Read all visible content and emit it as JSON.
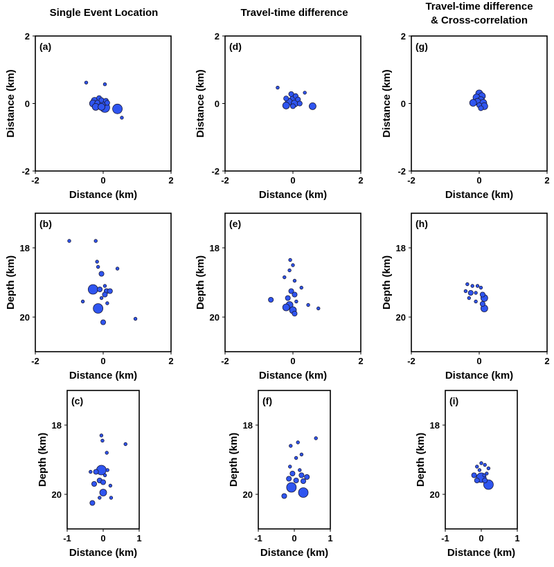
{
  "figure": {
    "column_titles": [
      [
        "Single Event Location"
      ],
      [
        "Travel-time difference"
      ],
      [
        "Travel-time difference",
        "& Cross-correlation"
      ]
    ],
    "event_color": "#2f55f0",
    "event_edge_color": "#1a1a3a"
  },
  "chart_data": [
    {
      "id": "a",
      "label": "(a)",
      "type": "scatter",
      "view": "map",
      "xlabel": "Distance (km)",
      "ylabel": "Distance (km)",
      "xlim": [
        -2,
        2
      ],
      "ylim": [
        -2,
        2
      ],
      "xticks": [
        -2,
        0,
        2
      ],
      "yticks": [
        2,
        0,
        -2
      ],
      "points": [
        {
          "x": -0.5,
          "y": 0.62,
          "m": 1
        },
        {
          "x": 0.05,
          "y": 0.57,
          "m": 1
        },
        {
          "x": -0.12,
          "y": 0.16,
          "m": 2
        },
        {
          "x": -0.25,
          "y": 0.08,
          "m": 3
        },
        {
          "x": -0.05,
          "y": 0.1,
          "m": 2
        },
        {
          "x": 0.08,
          "y": 0.08,
          "m": 2
        },
        {
          "x": -0.3,
          "y": 0.0,
          "m": 3
        },
        {
          "x": -0.15,
          "y": 0.0,
          "m": 3
        },
        {
          "x": 0.0,
          "y": 0.02,
          "m": 3
        },
        {
          "x": 0.12,
          "y": 0.02,
          "m": 2
        },
        {
          "x": -0.22,
          "y": -0.1,
          "m": 3
        },
        {
          "x": -0.05,
          "y": -0.1,
          "m": 3
        },
        {
          "x": 0.05,
          "y": -0.12,
          "m": 4
        },
        {
          "x": 0.42,
          "y": -0.16,
          "m": 4
        },
        {
          "x": 0.55,
          "y": -0.42,
          "m": 1
        }
      ]
    },
    {
      "id": "d",
      "label": "(d)",
      "type": "scatter",
      "view": "map",
      "xlabel": "Distance (km)",
      "ylabel": "Distance (km)",
      "xlim": [
        -2,
        2
      ],
      "ylim": [
        -2,
        2
      ],
      "xticks": [
        -2,
        0,
        2
      ],
      "yticks": [
        2,
        0,
        -2
      ],
      "points": [
        {
          "x": -0.45,
          "y": 0.47,
          "m": 1
        },
        {
          "x": 0.35,
          "y": 0.32,
          "m": 1
        },
        {
          "x": -0.05,
          "y": 0.28,
          "m": 2
        },
        {
          "x": 0.08,
          "y": 0.22,
          "m": 2
        },
        {
          "x": -0.2,
          "y": 0.15,
          "m": 2
        },
        {
          "x": 0.0,
          "y": 0.12,
          "m": 3
        },
        {
          "x": 0.15,
          "y": 0.12,
          "m": 2
        },
        {
          "x": -0.12,
          "y": 0.05,
          "m": 3
        },
        {
          "x": 0.05,
          "y": 0.0,
          "m": 3
        },
        {
          "x": 0.2,
          "y": 0.0,
          "m": 2
        },
        {
          "x": -0.2,
          "y": -0.06,
          "m": 3
        },
        {
          "x": 0.0,
          "y": -0.08,
          "m": 2
        },
        {
          "x": 0.58,
          "y": -0.08,
          "m": 3
        }
      ]
    },
    {
      "id": "g",
      "label": "(g)",
      "type": "scatter",
      "view": "map",
      "xlabel": "Distance (km)",
      "ylabel": "Distance (km)",
      "xlim": [
        -2,
        2
      ],
      "ylim": [
        -2,
        2
      ],
      "xticks": [
        -2,
        0,
        2
      ],
      "yticks": [
        2,
        0,
        -2
      ],
      "points": [
        {
          "x": 0.0,
          "y": 0.3,
          "m": 3
        },
        {
          "x": 0.08,
          "y": 0.22,
          "m": 3
        },
        {
          "x": -0.08,
          "y": 0.18,
          "m": 3
        },
        {
          "x": 0.05,
          "y": 0.1,
          "m": 3
        },
        {
          "x": -0.05,
          "y": 0.05,
          "m": 3
        },
        {
          "x": -0.18,
          "y": 0.02,
          "m": 3
        },
        {
          "x": 0.12,
          "y": 0.02,
          "m": 3
        },
        {
          "x": 0.0,
          "y": -0.05,
          "m": 2
        },
        {
          "x": 0.15,
          "y": -0.08,
          "m": 3
        },
        {
          "x": 0.05,
          "y": -0.14,
          "m": 2
        }
      ]
    },
    {
      "id": "b",
      "label": "(b)",
      "type": "scatter",
      "view": "depth",
      "xlabel": "Distance (km)",
      "ylabel": "Depth (km)",
      "xlim": [
        -2,
        2
      ],
      "ylim": [
        21,
        17
      ],
      "xticks": [
        -2,
        0,
        2
      ],
      "yticks": [
        18,
        20
      ],
      "points": [
        {
          "x": -1.0,
          "y": 17.8,
          "m": 1
        },
        {
          "x": -0.22,
          "y": 17.8,
          "m": 1
        },
        {
          "x": -0.18,
          "y": 18.4,
          "m": 1
        },
        {
          "x": -0.15,
          "y": 18.55,
          "m": 1
        },
        {
          "x": 0.42,
          "y": 18.6,
          "m": 1
        },
        {
          "x": -0.05,
          "y": 18.75,
          "m": 2
        },
        {
          "x": 0.05,
          "y": 19.1,
          "m": 1
        },
        {
          "x": -0.1,
          "y": 19.2,
          "m": 2
        },
        {
          "x": -0.3,
          "y": 19.2,
          "m": 4
        },
        {
          "x": 0.1,
          "y": 19.25,
          "m": 2
        },
        {
          "x": 0.2,
          "y": 19.25,
          "m": 2
        },
        {
          "x": 0.05,
          "y": 19.35,
          "m": 2
        },
        {
          "x": -0.05,
          "y": 19.45,
          "m": 1
        },
        {
          "x": -0.6,
          "y": 19.55,
          "m": 1
        },
        {
          "x": 0.12,
          "y": 19.6,
          "m": 1
        },
        {
          "x": -0.15,
          "y": 19.75,
          "m": 4
        },
        {
          "x": 0.0,
          "y": 20.15,
          "m": 2
        },
        {
          "x": 0.95,
          "y": 20.05,
          "m": 1
        }
      ]
    },
    {
      "id": "e",
      "label": "(e)",
      "type": "scatter",
      "view": "depth",
      "xlabel": "Distance (km)",
      "ylabel": "Depth (km)",
      "xlim": [
        -2,
        2
      ],
      "ylim": [
        21,
        17
      ],
      "xticks": [
        -2,
        0,
        2
      ],
      "yticks": [
        18,
        20
      ],
      "points": [
        {
          "x": -0.08,
          "y": 18.35,
          "m": 1
        },
        {
          "x": 0.0,
          "y": 18.5,
          "m": 1
        },
        {
          "x": -0.1,
          "y": 18.65,
          "m": 1
        },
        {
          "x": -0.25,
          "y": 18.85,
          "m": 1
        },
        {
          "x": 0.05,
          "y": 18.95,
          "m": 1
        },
        {
          "x": 0.25,
          "y": 19.15,
          "m": 1
        },
        {
          "x": -0.05,
          "y": 19.25,
          "m": 2
        },
        {
          "x": 0.05,
          "y": 19.35,
          "m": 2
        },
        {
          "x": -0.15,
          "y": 19.45,
          "m": 2
        },
        {
          "x": -0.65,
          "y": 19.5,
          "m": 2
        },
        {
          "x": 0.1,
          "y": 19.55,
          "m": 1
        },
        {
          "x": -0.1,
          "y": 19.65,
          "m": 3
        },
        {
          "x": -0.2,
          "y": 19.72,
          "m": 3
        },
        {
          "x": 0.0,
          "y": 19.8,
          "m": 3
        },
        {
          "x": 0.05,
          "y": 19.9,
          "m": 2
        },
        {
          "x": 0.45,
          "y": 19.65,
          "m": 1
        },
        {
          "x": 0.75,
          "y": 19.75,
          "m": 1
        }
      ]
    },
    {
      "id": "h",
      "label": "(h)",
      "type": "scatter",
      "view": "depth",
      "xlabel": "Distance (km)",
      "ylabel": "Depth (km)",
      "xlim": [
        -2,
        2
      ],
      "ylim": [
        21,
        17
      ],
      "xticks": [
        -2,
        0,
        2
      ],
      "yticks": [
        18,
        20
      ],
      "points": [
        {
          "x": -0.35,
          "y": 19.05,
          "m": 1
        },
        {
          "x": -0.2,
          "y": 19.1,
          "m": 1
        },
        {
          "x": -0.05,
          "y": 19.1,
          "m": 1
        },
        {
          "x": 0.05,
          "y": 19.15,
          "m": 1
        },
        {
          "x": -0.4,
          "y": 19.25,
          "m": 1
        },
        {
          "x": -0.25,
          "y": 19.3,
          "m": 2
        },
        {
          "x": -0.1,
          "y": 19.3,
          "m": 1
        },
        {
          "x": 0.1,
          "y": 19.35,
          "m": 2
        },
        {
          "x": -0.3,
          "y": 19.45,
          "m": 1
        },
        {
          "x": 0.15,
          "y": 19.45,
          "m": 3
        },
        {
          "x": -0.1,
          "y": 19.55,
          "m": 1
        },
        {
          "x": 0.1,
          "y": 19.62,
          "m": 2
        },
        {
          "x": 0.15,
          "y": 19.75,
          "m": 3
        }
      ]
    },
    {
      "id": "c",
      "label": "(c)",
      "type": "scatter",
      "view": "depth-narrow",
      "xlabel": "Distance (km)",
      "ylabel": "Depth (km)",
      "xlim": [
        -1,
        1
      ],
      "ylim": [
        21,
        17
      ],
      "xticks": [
        -1,
        0,
        1
      ],
      "yticks": [
        18,
        20
      ],
      "points": [
        {
          "x": -0.05,
          "y": 18.3,
          "m": 1
        },
        {
          "x": -0.02,
          "y": 18.45,
          "m": 1
        },
        {
          "x": 0.62,
          "y": 18.55,
          "m": 1
        },
        {
          "x": 0.1,
          "y": 18.8,
          "m": 1
        },
        {
          "x": -0.35,
          "y": 19.35,
          "m": 1
        },
        {
          "x": -0.2,
          "y": 19.35,
          "m": 2
        },
        {
          "x": -0.05,
          "y": 19.3,
          "m": 4
        },
        {
          "x": 0.12,
          "y": 19.3,
          "m": 1
        },
        {
          "x": 0.05,
          "y": 19.45,
          "m": 1
        },
        {
          "x": -0.1,
          "y": 19.6,
          "m": 2
        },
        {
          "x": 0.0,
          "y": 19.65,
          "m": 2
        },
        {
          "x": -0.25,
          "y": 19.7,
          "m": 2
        },
        {
          "x": 0.2,
          "y": 19.75,
          "m": 1
        },
        {
          "x": 0.0,
          "y": 19.95,
          "m": 3
        },
        {
          "x": -0.1,
          "y": 20.1,
          "m": 1
        },
        {
          "x": 0.22,
          "y": 20.1,
          "m": 1
        },
        {
          "x": -0.3,
          "y": 20.25,
          "m": 2
        }
      ]
    },
    {
      "id": "f",
      "label": "(f)",
      "type": "scatter",
      "view": "depth-narrow",
      "xlabel": "Distance (km)",
      "ylabel": "Depth (km)",
      "xlim": [
        -1,
        1
      ],
      "ylim": [
        21,
        17
      ],
      "xticks": [
        -1,
        0,
        1
      ],
      "yticks": [
        18,
        20
      ],
      "points": [
        {
          "x": 0.1,
          "y": 18.5,
          "m": 1
        },
        {
          "x": 0.6,
          "y": 18.38,
          "m": 1
        },
        {
          "x": -0.1,
          "y": 18.6,
          "m": 1
        },
        {
          "x": 0.2,
          "y": 18.85,
          "m": 1
        },
        {
          "x": 0.05,
          "y": 18.95,
          "m": 1
        },
        {
          "x": -0.12,
          "y": 19.2,
          "m": 1
        },
        {
          "x": 0.15,
          "y": 19.3,
          "m": 1
        },
        {
          "x": -0.05,
          "y": 19.4,
          "m": 2
        },
        {
          "x": 0.2,
          "y": 19.45,
          "m": 2
        },
        {
          "x": 0.35,
          "y": 19.5,
          "m": 2
        },
        {
          "x": -0.15,
          "y": 19.55,
          "m": 2
        },
        {
          "x": 0.05,
          "y": 19.6,
          "m": 2
        },
        {
          "x": 0.25,
          "y": 19.62,
          "m": 2
        },
        {
          "x": -0.08,
          "y": 19.8,
          "m": 4
        },
        {
          "x": 0.25,
          "y": 19.95,
          "m": 4
        },
        {
          "x": -0.28,
          "y": 20.05,
          "m": 2
        }
      ]
    },
    {
      "id": "i",
      "label": "(i)",
      "type": "scatter",
      "view": "depth-narrow",
      "xlabel": "Distance (km)",
      "ylabel": "Depth (km)",
      "xlim": [
        -1,
        1
      ],
      "ylim": [
        21,
        17
      ],
      "xticks": [
        -1,
        0,
        1
      ],
      "yticks": [
        18,
        20
      ],
      "points": [
        {
          "x": 0.0,
          "y": 19.1,
          "m": 1
        },
        {
          "x": 0.1,
          "y": 19.15,
          "m": 1
        },
        {
          "x": -0.12,
          "y": 19.2,
          "m": 1
        },
        {
          "x": 0.2,
          "y": 19.25,
          "m": 1
        },
        {
          "x": -0.05,
          "y": 19.3,
          "m": 1
        },
        {
          "x": 0.15,
          "y": 19.4,
          "m": 1
        },
        {
          "x": -0.2,
          "y": 19.45,
          "m": 2
        },
        {
          "x": 0.08,
          "y": 19.45,
          "m": 1
        },
        {
          "x": 0.0,
          "y": 19.52,
          "m": 4
        },
        {
          "x": -0.12,
          "y": 19.6,
          "m": 2
        },
        {
          "x": 0.1,
          "y": 19.6,
          "m": 2
        },
        {
          "x": 0.2,
          "y": 19.72,
          "m": 4
        }
      ]
    }
  ]
}
